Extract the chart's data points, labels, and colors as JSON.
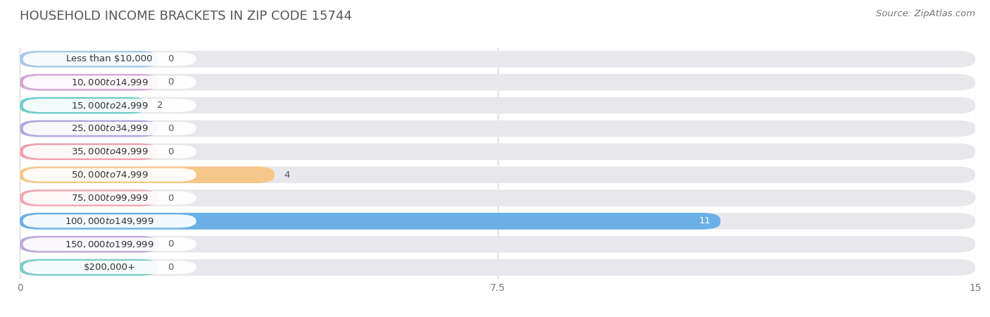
{
  "title": "HOUSEHOLD INCOME BRACKETS IN ZIP CODE 15744",
  "source": "Source: ZipAtlas.com",
  "categories": [
    "Less than $10,000",
    "$10,000 to $14,999",
    "$15,000 to $24,999",
    "$25,000 to $34,999",
    "$35,000 to $49,999",
    "$50,000 to $74,999",
    "$75,000 to $99,999",
    "$100,000 to $149,999",
    "$150,000 to $199,999",
    "$200,000+"
  ],
  "values": [
    0,
    0,
    2,
    0,
    0,
    4,
    0,
    11,
    0,
    0
  ],
  "bar_colors": [
    "#a8c8e8",
    "#d4a8d4",
    "#6ecece",
    "#b0a8e0",
    "#f0a0b0",
    "#f5c88a",
    "#f0a8b0",
    "#6aafe6",
    "#c0a8d8",
    "#7ecec8"
  ],
  "bar_bg_color": "#e8e8ec",
  "xlim": [
    0,
    15
  ],
  "xticks": [
    0,
    7.5,
    15
  ],
  "title_fontsize": 13,
  "label_fontsize": 9.5,
  "value_fontsize": 9.5,
  "source_fontsize": 9.5
}
